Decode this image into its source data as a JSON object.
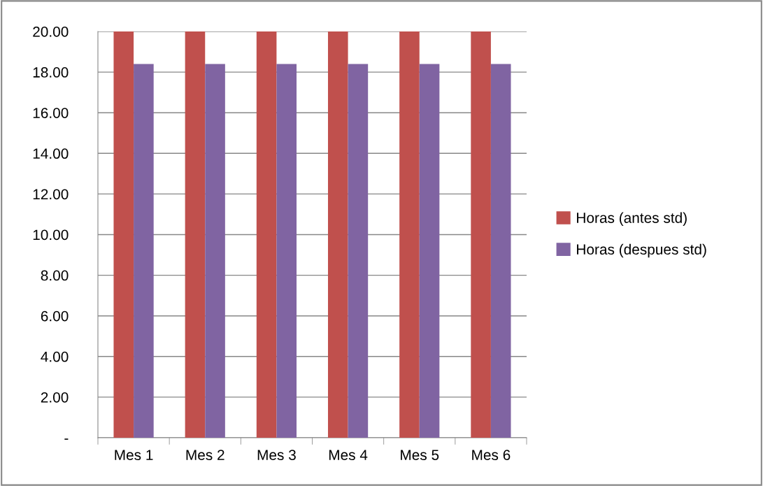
{
  "chart_data": {
    "type": "bar",
    "categories": [
      "Mes 1",
      "Mes 2",
      "Mes 3",
      "Mes 4",
      "Mes 5",
      "Mes 6"
    ],
    "series": [
      {
        "name": "Horas (antes std)",
        "color": "#c0504d",
        "values": [
          20.0,
          20.0,
          20.0,
          20.0,
          20.0,
          20.0
        ]
      },
      {
        "name": "Horas (despues std)",
        "color": "#8064a2",
        "values": [
          18.4,
          18.4,
          18.4,
          18.4,
          18.4,
          18.4
        ]
      }
    ],
    "ylim": [
      0,
      20
    ],
    "yticks": [
      {
        "value": 0,
        "label": "-"
      },
      {
        "value": 2,
        "label": "2.00"
      },
      {
        "value": 4,
        "label": "4.00"
      },
      {
        "value": 6,
        "label": "6.00"
      },
      {
        "value": 8,
        "label": "8.00"
      },
      {
        "value": 10,
        "label": "10.00"
      },
      {
        "value": 12,
        "label": "12.00"
      },
      {
        "value": 14,
        "label": "14.00"
      },
      {
        "value": 16,
        "label": "16.00"
      },
      {
        "value": 18,
        "label": "18.00"
      },
      {
        "value": 20,
        "label": "20.00"
      }
    ],
    "grid": "y",
    "legend": "right"
  }
}
